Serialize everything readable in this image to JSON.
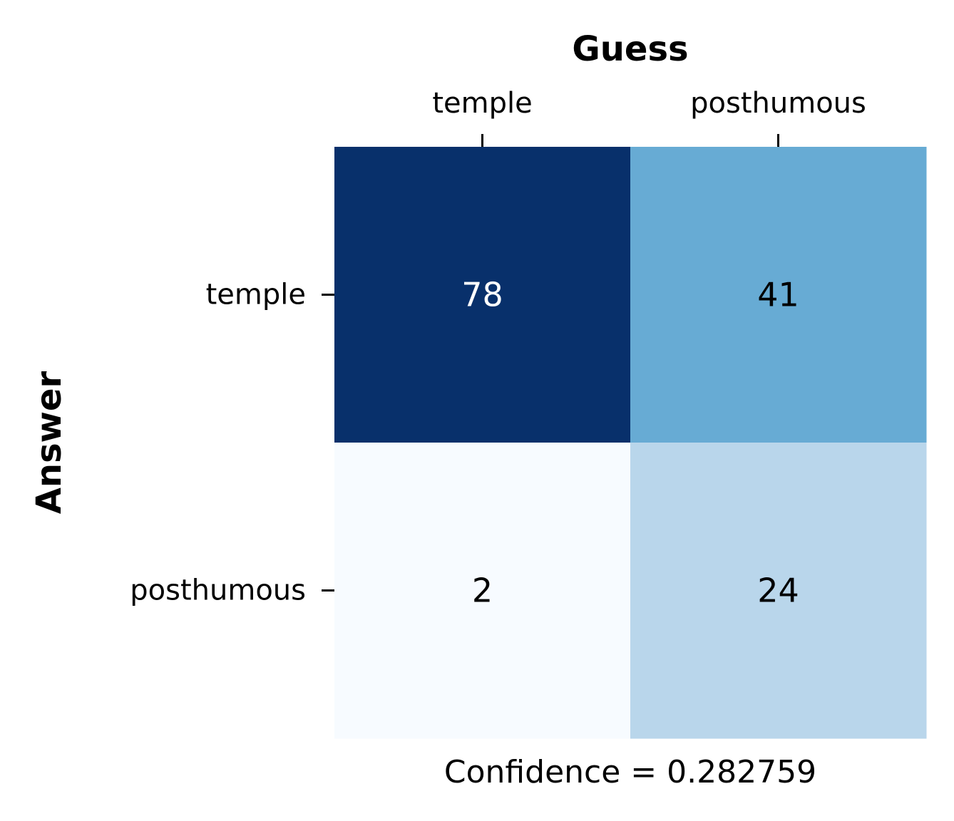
{
  "chart_data": {
    "type": "heatmap",
    "xlabel": "Guess",
    "ylabel": "Answer",
    "x_categories": [
      "temple",
      "posthumous"
    ],
    "y_categories": [
      "temple",
      "posthumous"
    ],
    "values": [
      [
        78,
        41
      ],
      [
        2,
        24
      ]
    ],
    "colormap": "Blues",
    "value_range": [
      2,
      78
    ],
    "colors": {
      "low": "#f7fbff",
      "high": "#08306b",
      "text_dark": "#000000",
      "text_light": "#ffffff"
    },
    "footer": "Confidence = 0.282759",
    "grid": false,
    "legend": "none"
  }
}
